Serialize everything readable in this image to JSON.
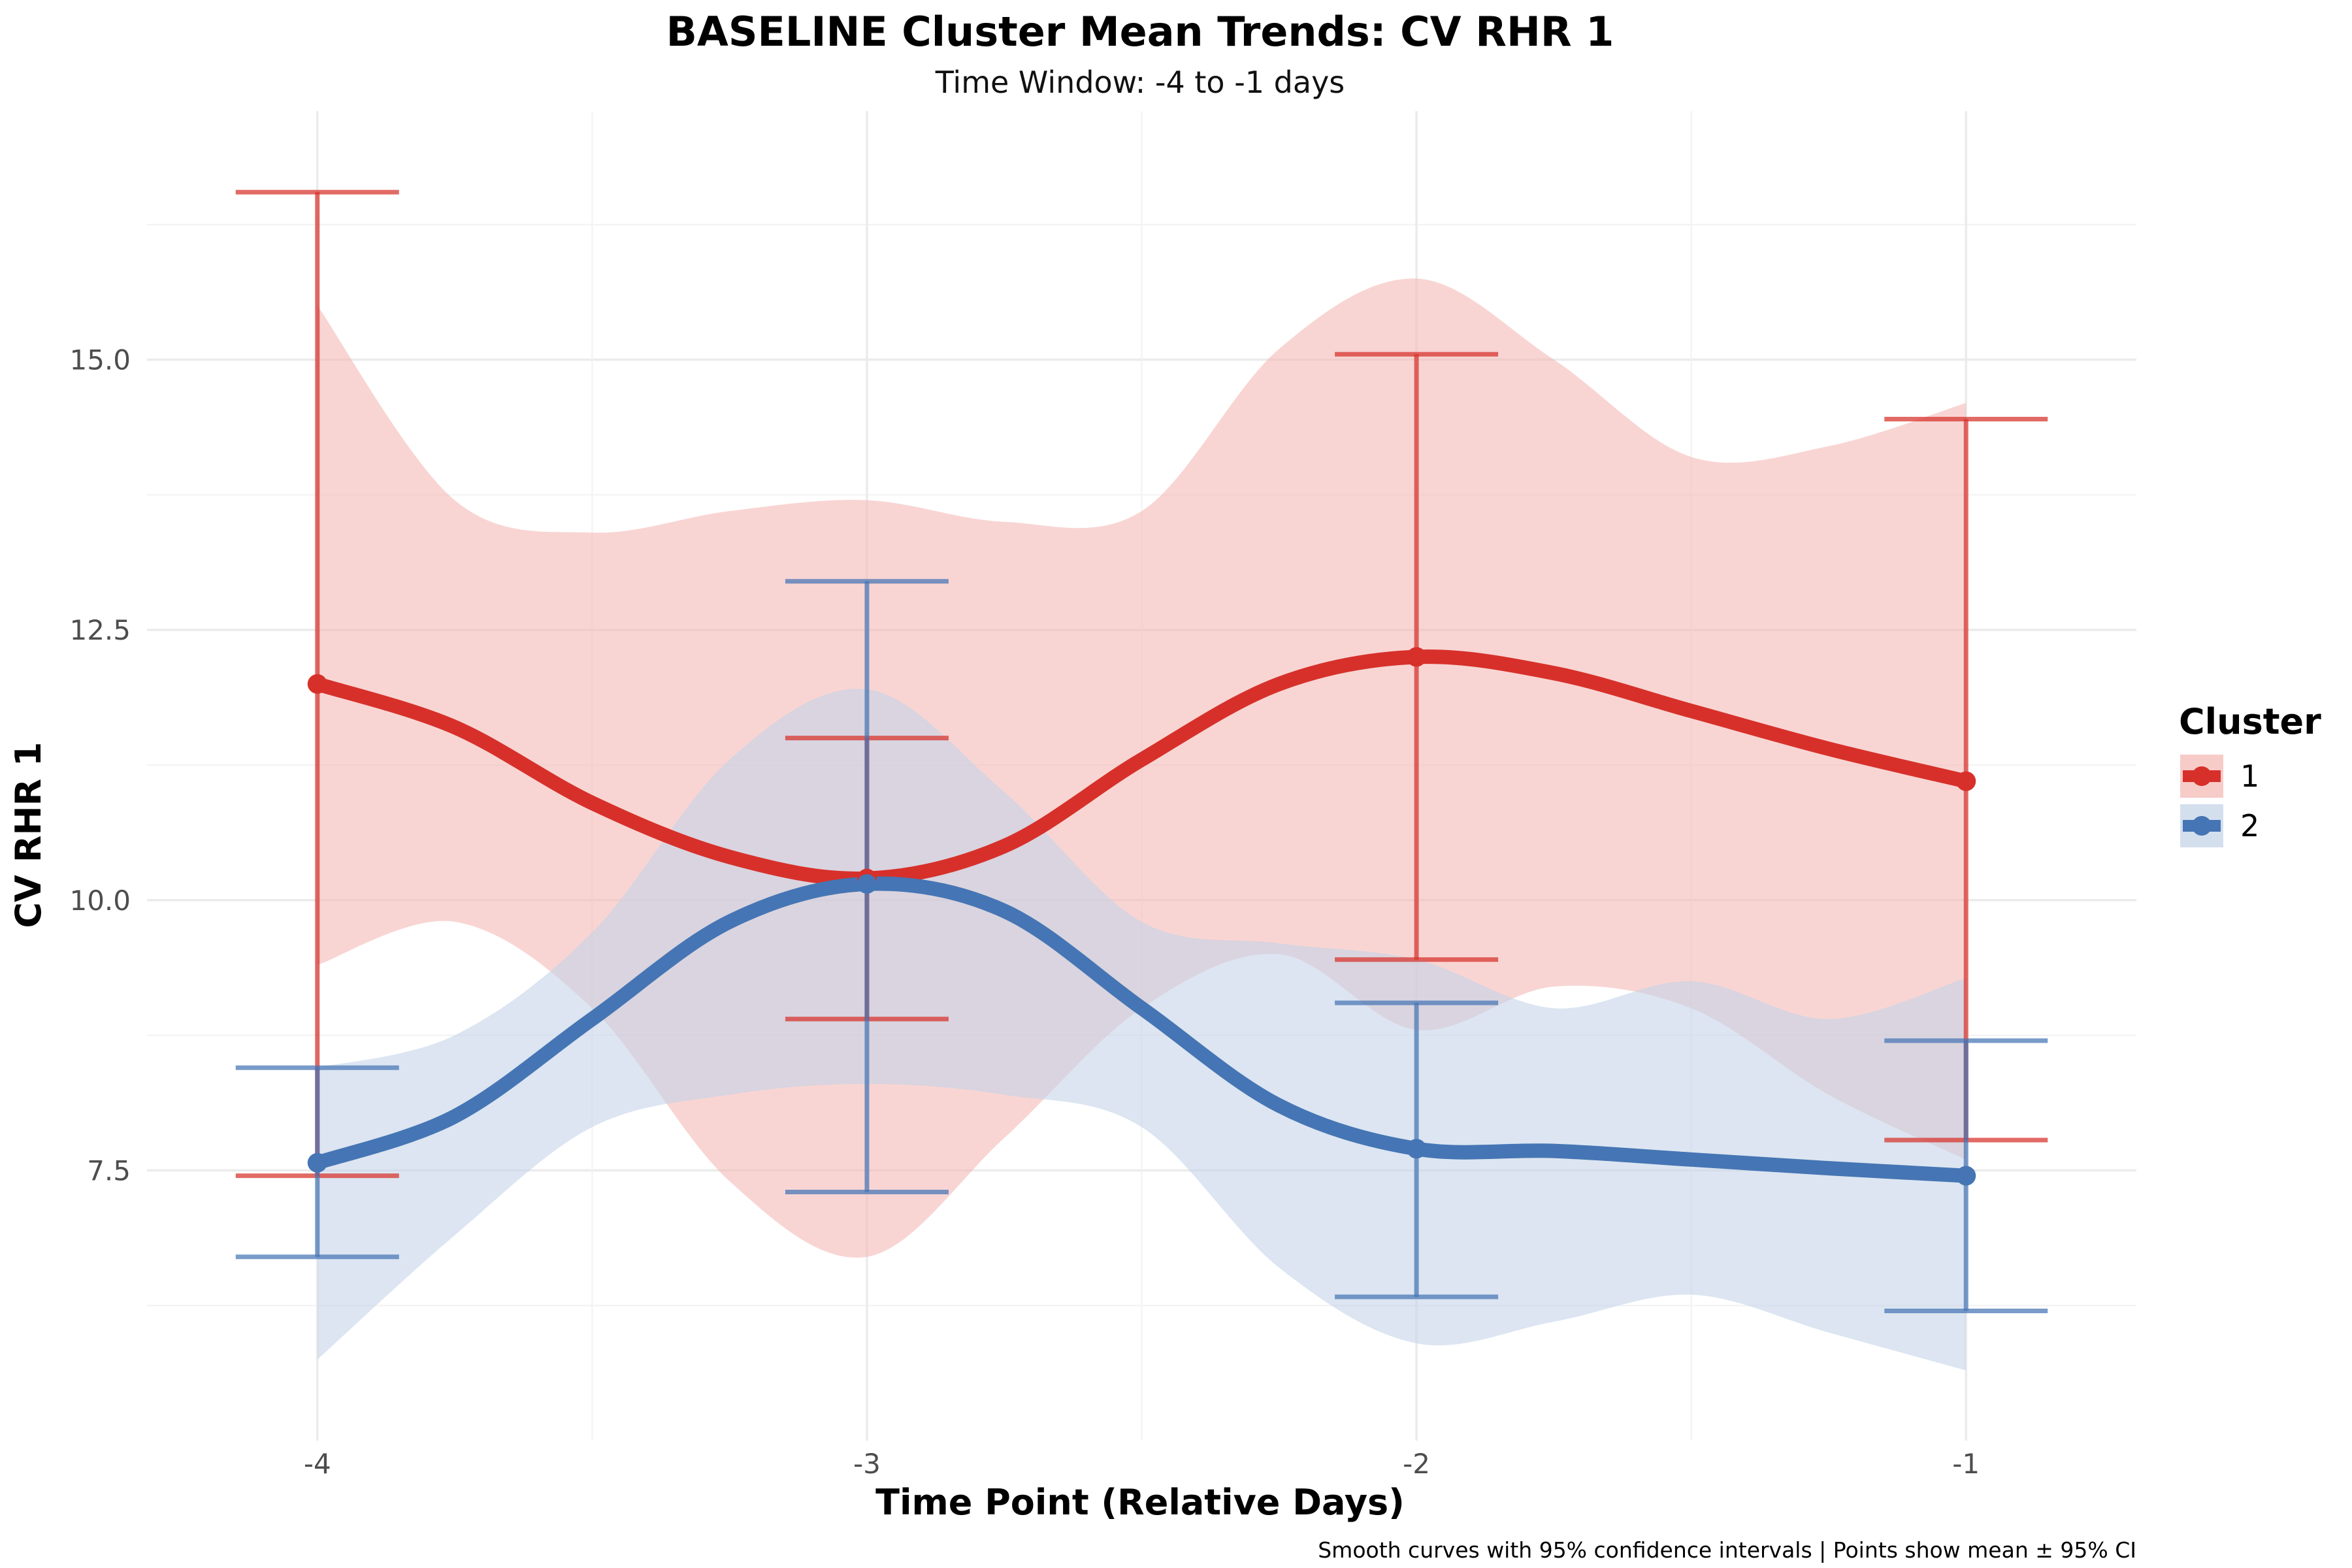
{
  "chart_data": {
    "type": "line",
    "title": "BASELINE Cluster Mean Trends: CV RHR 1",
    "subtitle": "Time Window: -4 to -1 days",
    "xlabel": "Time Point (Relative Days)",
    "ylabel": "CV RHR 1",
    "caption": "Smooth curves with 95% confidence intervals | Points show mean ± 95% CI",
    "x": [
      -4,
      -3,
      -2,
      -1
    ],
    "x_tick_labels": [
      "-4",
      "-3",
      "-2",
      "-1"
    ],
    "y_ticks": [
      7.5,
      10.0,
      12.5,
      15.0
    ],
    "y_tick_labels": [
      "7.5",
      "10.0",
      "12.5",
      "15.0"
    ],
    "xlim": [
      -4.31,
      -0.69
    ],
    "ylim": [
      5.0,
      17.3
    ],
    "grid": true,
    "legend": {
      "title": "Cluster",
      "placement": "right"
    },
    "series": [
      {
        "name": "1",
        "color": "#D7302A",
        "band_color": "#F4B9B5",
        "mean": [
          12.0,
          10.2,
          12.25,
          11.1
        ],
        "ci_lower": [
          7.45,
          8.9,
          9.45,
          7.78
        ],
        "ci_upper": [
          16.55,
          11.5,
          15.05,
          14.45
        ],
        "smooth_x": [
          -4,
          -3.75,
          -3.5,
          -3.25,
          -3,
          -2.75,
          -2.5,
          -2.25,
          -2,
          -1.75,
          -1.5,
          -1.25,
          -1
        ],
        "smooth_y": [
          12.0,
          11.6,
          10.9,
          10.4,
          10.2,
          10.5,
          11.3,
          12.0,
          12.25,
          12.1,
          11.75,
          11.4,
          11.1
        ],
        "smooth_lower": [
          9.4,
          9.8,
          9.0,
          7.4,
          6.7,
          7.8,
          9.0,
          9.5,
          8.8,
          9.2,
          9.0,
          8.2,
          7.6
        ],
        "smooth_upper": [
          15.5,
          13.7,
          13.4,
          13.6,
          13.7,
          13.5,
          13.6,
          15.1,
          15.75,
          15.0,
          14.1,
          14.2,
          14.6
        ]
      },
      {
        "name": "2",
        "color": "#4575B4",
        "band_color": "#C5D4E8",
        "mean": [
          7.57,
          10.15,
          7.7,
          7.45
        ],
        "ci_lower": [
          6.7,
          7.3,
          6.33,
          6.2
        ],
        "ci_upper": [
          8.45,
          12.95,
          9.05,
          8.7
        ],
        "smooth_x": [
          -4,
          -3.75,
          -3.5,
          -3.25,
          -3,
          -2.75,
          -2.5,
          -2.25,
          -2,
          -1.75,
          -1.5,
          -1.25,
          -1
        ],
        "smooth_y": [
          7.57,
          8.0,
          8.9,
          9.8,
          10.15,
          9.9,
          9.0,
          8.1,
          7.7,
          7.68,
          7.6,
          7.52,
          7.45
        ],
        "smooth_lower": [
          5.75,
          6.9,
          7.9,
          8.2,
          8.3,
          8.2,
          7.9,
          6.6,
          5.9,
          6.1,
          6.35,
          6.0,
          5.65
        ],
        "smooth_upper": [
          8.45,
          8.75,
          9.7,
          11.3,
          11.95,
          11.0,
          9.8,
          9.6,
          9.45,
          9.0,
          9.25,
          8.9,
          9.28
        ]
      }
    ]
  }
}
